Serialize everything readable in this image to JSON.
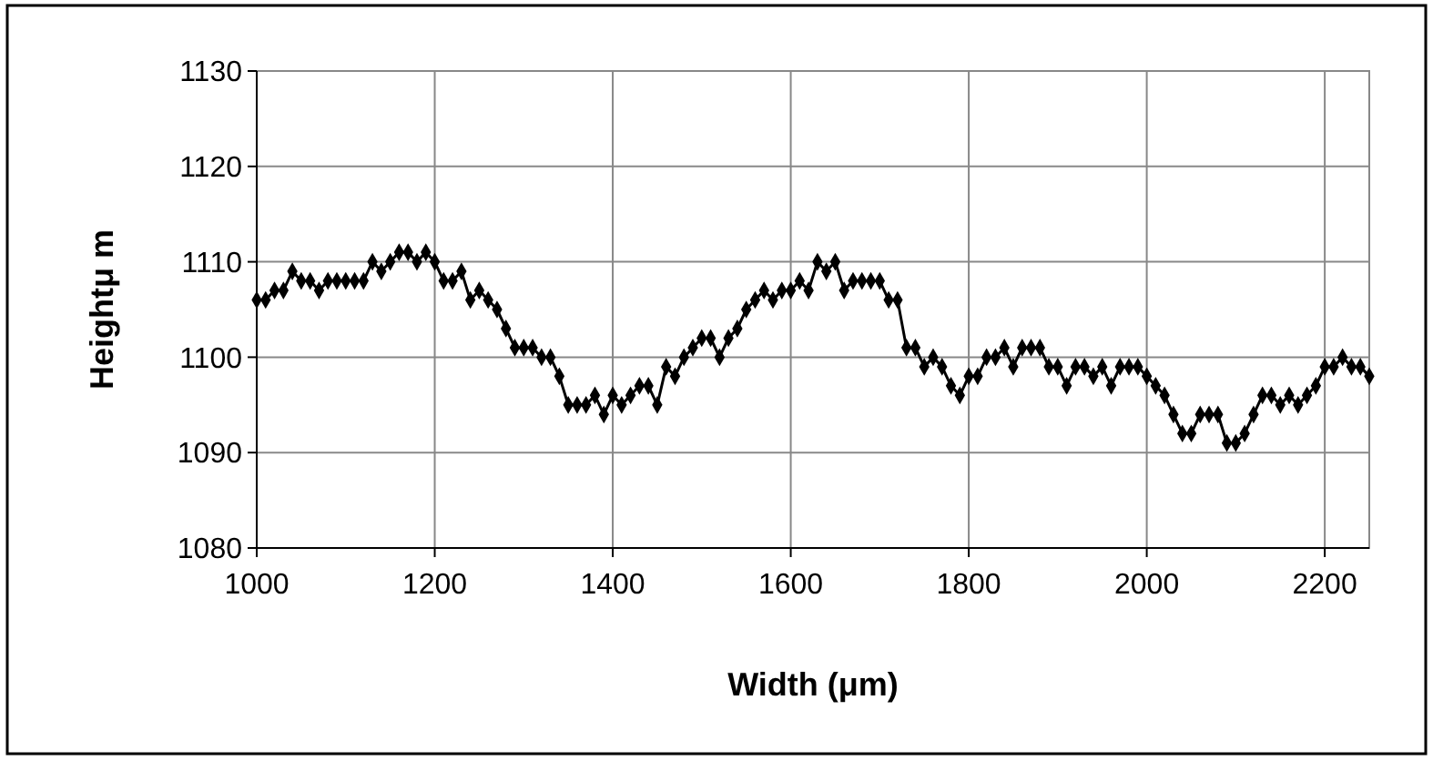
{
  "chart_data": {
    "type": "line",
    "xlabel": "Width (μm)",
    "ylabel": "Heightμ m",
    "x": [
      1000,
      1010,
      1020,
      1030,
      1040,
      1050,
      1060,
      1070,
      1080,
      1090,
      1100,
      1110,
      1120,
      1130,
      1140,
      1150,
      1160,
      1170,
      1180,
      1190,
      1200,
      1210,
      1220,
      1230,
      1240,
      1250,
      1260,
      1270,
      1280,
      1290,
      1300,
      1310,
      1320,
      1330,
      1340,
      1350,
      1360,
      1370,
      1380,
      1390,
      1400,
      1410,
      1420,
      1430,
      1440,
      1450,
      1460,
      1470,
      1480,
      1490,
      1500,
      1510,
      1520,
      1530,
      1540,
      1550,
      1560,
      1570,
      1580,
      1590,
      1600,
      1610,
      1620,
      1630,
      1640,
      1650,
      1660,
      1670,
      1680,
      1690,
      1700,
      1710,
      1720,
      1730,
      1740,
      1750,
      1760,
      1770,
      1780,
      1790,
      1800,
      1810,
      1820,
      1830,
      1840,
      1850,
      1860,
      1870,
      1880,
      1890,
      1900,
      1910,
      1920,
      1930,
      1940,
      1950,
      1960,
      1970,
      1980,
      1990,
      2000,
      2010,
      2020,
      2030,
      2040,
      2050,
      2060,
      2070,
      2080,
      2090,
      2100,
      2110,
      2120,
      2130,
      2140,
      2150,
      2160,
      2170,
      2180,
      2190,
      2200,
      2210,
      2220,
      2230,
      2240,
      2250
    ],
    "series": [
      {
        "color": "#000000",
        "values": [
          1106,
          1106,
          1107,
          1107,
          1109,
          1108,
          1108,
          1107,
          1108,
          1108,
          1108,
          1108,
          1108,
          1110,
          1109,
          1110,
          1111,
          1111,
          1110,
          1111,
          1110,
          1108,
          1108,
          1109,
          1106,
          1107,
          1106,
          1105,
          1103,
          1101,
          1101,
          1101,
          1100,
          1100,
          1098,
          1095,
          1095,
          1095,
          1096,
          1094,
          1096,
          1095,
          1096,
          1097,
          1097,
          1095,
          1099,
          1098,
          1100,
          1101,
          1102,
          1102,
          1100,
          1102,
          1103,
          1105,
          1106,
          1107,
          1106,
          1107,
          1107,
          1108,
          1107,
          1110,
          1109,
          1110,
          1107,
          1108,
          1108,
          1108,
          1108,
          1106,
          1106,
          1101,
          1101,
          1099,
          1100,
          1099,
          1097,
          1096,
          1098,
          1098,
          1100,
          1100,
          1101,
          1099,
          1101,
          1101,
          1101,
          1099,
          1099,
          1097,
          1099,
          1099,
          1098,
          1099,
          1097,
          1099,
          1099,
          1099,
          1098,
          1097,
          1096,
          1094,
          1092,
          1092,
          1094,
          1094,
          1094,
          1091,
          1091,
          1092,
          1094,
          1096,
          1096,
          1095,
          1096,
          1095,
          1096,
          1097,
          1099,
          1099,
          1100,
          1099,
          1099,
          1098
        ]
      }
    ],
    "xlim": [
      1000,
      2250
    ],
    "xticks": [
      1000,
      1200,
      1400,
      1600,
      1800,
      2000,
      2200
    ],
    "ylim": [
      1080,
      1130
    ],
    "yticks": [
      1080,
      1090,
      1100,
      1110,
      1120,
      1130
    ],
    "grid": true,
    "marker": "diamond",
    "line_style": "solid"
  }
}
